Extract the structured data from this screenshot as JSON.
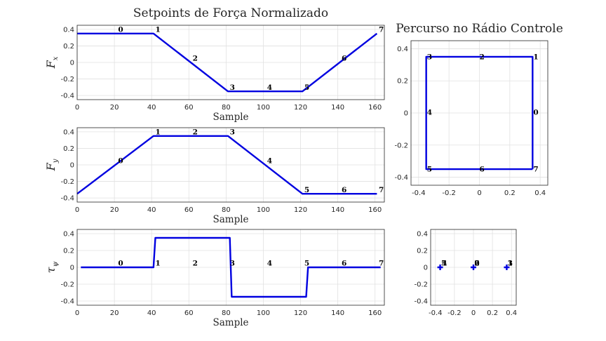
{
  "chart_data": [
    {
      "id": "fx",
      "type": "line",
      "title": "Setpoints de Força Normalizado",
      "xlabel": "Sample",
      "ylabel": "F",
      "ylabel_sub": "x",
      "xlim": [
        0,
        165
      ],
      "ylim": [
        -0.45,
        0.45
      ],
      "xticks": [
        0,
        20,
        40,
        60,
        80,
        100,
        120,
        140,
        160
      ],
      "yticks": [
        0.4,
        0.2,
        0,
        -0.2,
        -0.4
      ],
      "ytick_labels": [
        "0.4",
        "0.2",
        "0",
        "-0.2",
        "-0.4"
      ],
      "grid": true,
      "series": [
        {
          "name": "Fx",
          "color": "#0000e0",
          "x": [
            0,
            41,
            81,
            121,
            161
          ],
          "y": [
            0.35,
            0.35,
            -0.35,
            -0.35,
            0.35
          ]
        }
      ],
      "annotations": [
        {
          "text": "0",
          "x": 22,
          "y": 0.37
        },
        {
          "text": "1",
          "x": 42,
          "y": 0.37
        },
        {
          "text": "2",
          "x": 62,
          "y": 0.02
        },
        {
          "text": "3",
          "x": 82,
          "y": -0.33
        },
        {
          "text": "4",
          "x": 102,
          "y": -0.33
        },
        {
          "text": "5",
          "x": 122,
          "y": -0.33
        },
        {
          "text": "6",
          "x": 142,
          "y": 0.02
        },
        {
          "text": "7",
          "x": 162,
          "y": 0.37
        }
      ]
    },
    {
      "id": "fy",
      "type": "line",
      "title": "",
      "xlabel": "Sample",
      "ylabel": "F",
      "ylabel_sub": "y",
      "xlim": [
        0,
        165
      ],
      "ylim": [
        -0.45,
        0.45
      ],
      "xticks": [
        0,
        20,
        40,
        60,
        80,
        100,
        120,
        140,
        160
      ],
      "yticks": [
        0.4,
        0.2,
        0,
        -0.2,
        -0.4
      ],
      "ytick_labels": [
        "0.4",
        "0.2",
        "0",
        "-0.2",
        "-0.4"
      ],
      "grid": true,
      "series": [
        {
          "name": "Fy",
          "color": "#0000e0",
          "x": [
            0,
            41,
            81,
            121,
            161
          ],
          "y": [
            -0.35,
            0.35,
            0.35,
            -0.35,
            -0.35
          ]
        }
      ],
      "annotations": [
        {
          "text": "0",
          "x": 22,
          "y": 0.02
        },
        {
          "text": "1",
          "x": 42,
          "y": 0.37
        },
        {
          "text": "2",
          "x": 62,
          "y": 0.37
        },
        {
          "text": "3",
          "x": 82,
          "y": 0.37
        },
        {
          "text": "4",
          "x": 102,
          "y": 0.02
        },
        {
          "text": "5",
          "x": 122,
          "y": -0.33
        },
        {
          "text": "6",
          "x": 142,
          "y": -0.33
        },
        {
          "text": "7",
          "x": 162,
          "y": -0.33
        }
      ]
    },
    {
      "id": "tau",
      "type": "line",
      "title": "",
      "xlabel": "Sample",
      "ylabel": "τ",
      "ylabel_sub": "ψ",
      "xlim": [
        0,
        165
      ],
      "ylim": [
        -0.45,
        0.45
      ],
      "xticks": [
        0,
        20,
        40,
        60,
        80,
        100,
        120,
        140,
        160
      ],
      "yticks": [
        0.4,
        0.2,
        0,
        -0.2,
        -0.4
      ],
      "ytick_labels": [
        "0.4",
        "0.2",
        "0",
        "-0.2",
        "-0.4"
      ],
      "grid": true,
      "series": [
        {
          "name": "tau_psi",
          "color": "#0000e0",
          "x": [
            2,
            41,
            42,
            82,
            83,
            123,
            124,
            163
          ],
          "y": [
            0,
            0,
            0.35,
            0.35,
            -0.35,
            -0.35,
            0,
            0
          ]
        }
      ],
      "annotations": [
        {
          "text": "0",
          "x": 22,
          "y": 0.02
        },
        {
          "text": "1",
          "x": 42,
          "y": 0.02
        },
        {
          "text": "2",
          "x": 62,
          "y": 0.02
        },
        {
          "text": "3",
          "x": 82,
          "y": 0.02
        },
        {
          "text": "4",
          "x": 102,
          "y": 0.02
        },
        {
          "text": "5",
          "x": 122,
          "y": 0.02
        },
        {
          "text": "6",
          "x": 142,
          "y": 0.02
        },
        {
          "text": "7",
          "x": 162,
          "y": 0.02
        }
      ]
    },
    {
      "id": "percurso",
      "type": "line",
      "title": "Percurso no Rádio Controle",
      "xlabel": "",
      "ylabel": "",
      "ylabel_sub": "",
      "xlim": [
        -0.45,
        0.45
      ],
      "ylim": [
        -0.45,
        0.45
      ],
      "xticks": [
        -0.4,
        -0.2,
        0,
        0.2,
        0.4
      ],
      "xtick_labels": [
        "-0.4",
        "-0.2",
        "0",
        "0.2",
        "0.4"
      ],
      "yticks": [
        0.4,
        0.2,
        0,
        -0.2,
        -0.4
      ],
      "ytick_labels": [
        "0.4",
        "0.2",
        "0",
        "-0.2",
        "-0.4"
      ],
      "grid": true,
      "series": [
        {
          "name": "path",
          "color": "#0000e0",
          "x": [
            0.35,
            0.35,
            -0.35,
            -0.35,
            0.35
          ],
          "y": [
            -0.35,
            0.35,
            0.35,
            -0.35,
            -0.35
          ]
        }
      ],
      "annotations": [
        {
          "text": "0",
          "x": 0.355,
          "y": -0.01
        },
        {
          "text": "1",
          "x": 0.355,
          "y": 0.335
        },
        {
          "text": "2",
          "x": 0.0,
          "y": 0.335
        },
        {
          "text": "3",
          "x": -0.345,
          "y": 0.335
        },
        {
          "text": "4",
          "x": -0.345,
          "y": -0.01
        },
        {
          "text": "5",
          "x": -0.345,
          "y": -0.365
        },
        {
          "text": "6",
          "x": 0.0,
          "y": -0.365
        },
        {
          "text": "7",
          "x": 0.355,
          "y": -0.365
        }
      ]
    },
    {
      "id": "yaw",
      "type": "scatter",
      "title": "",
      "xlabel": "",
      "ylabel": "",
      "ylabel_sub": "",
      "xlim": [
        -0.45,
        0.45
      ],
      "ylim": [
        -0.45,
        0.45
      ],
      "xticks": [
        -0.4,
        -0.2,
        0,
        0.2,
        0.4
      ],
      "xtick_labels": [
        "-0.4",
        "-0.2",
        "0",
        "0.2",
        "0.4"
      ],
      "yticks": [
        0.4,
        0.2,
        0,
        -0.2,
        -0.4
      ],
      "ytick_labels": [
        "0.4",
        "0.2",
        "0",
        "-0.2",
        "-0.4"
      ],
      "grid": true,
      "series": [
        {
          "name": "tau",
          "color": "#0000e0",
          "marker": "+",
          "x": [
            -0.35,
            0.0,
            0.35
          ],
          "y": [
            0,
            0,
            0
          ]
        }
      ],
      "annotations": [
        {
          "text": "5",
          "x": -0.34,
          "y": 0.02
        },
        {
          "text": "4",
          "x": -0.33,
          "y": 0.02
        },
        {
          "text": "0",
          "x": 0.01,
          "y": 0.02
        },
        {
          "text": "6",
          "x": 0.01,
          "y": 0.02
        },
        {
          "text": "2",
          "x": 0.01,
          "y": 0.02
        },
        {
          "text": "3",
          "x": 0.36,
          "y": 0.02
        },
        {
          "text": "1",
          "x": 0.36,
          "y": 0.02
        }
      ]
    }
  ]
}
